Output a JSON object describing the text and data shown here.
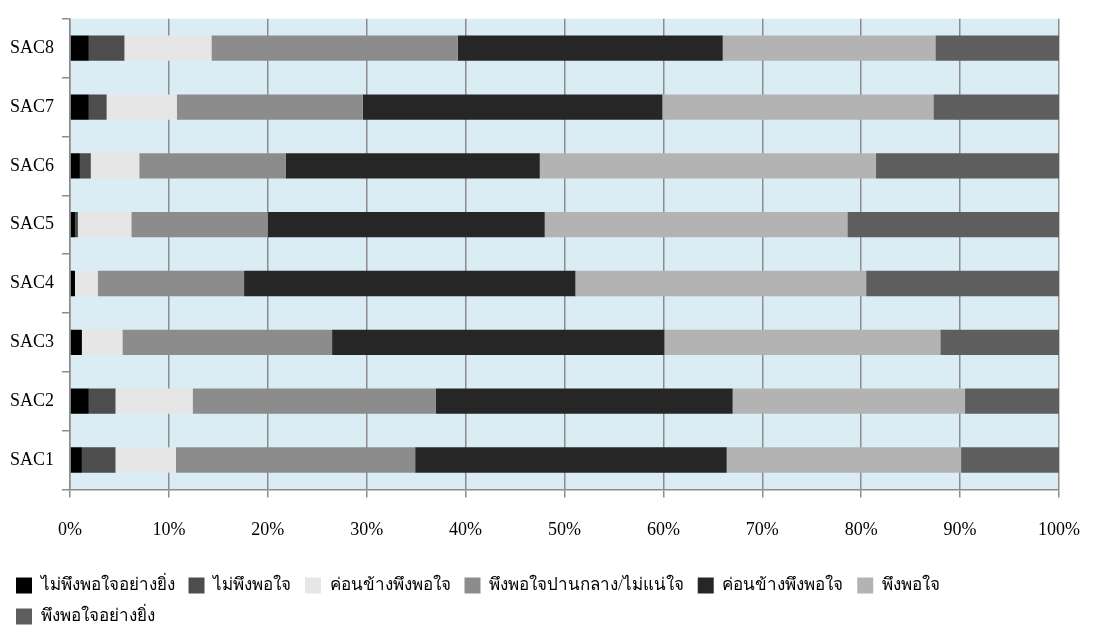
{
  "chart_data": {
    "type": "bar",
    "orientation": "horizontal",
    "stacked": true,
    "categories": [
      "SAC8",
      "SAC7",
      "SAC6",
      "SAC5",
      "SAC4",
      "SAC3",
      "SAC2",
      "SAC1"
    ],
    "series": [
      {
        "name": "ไม่พึงพอใจอย่างยิ่ง",
        "color": "#000000",
        "values": [
          1.9,
          1.9,
          1.0,
          0.5,
          0.5,
          1.2,
          1.9,
          1.2
        ]
      },
      {
        "name": "ไม่พึงพอใจ",
        "color": "#4d4d4d",
        "values": [
          3.6,
          1.8,
          1.1,
          0.3,
          0,
          0,
          2.7,
          3.4
        ]
      },
      {
        "name": "ค่อนข้างพึงพอใจ",
        "color": "#e6e6e6",
        "values": [
          8.8,
          7.1,
          4.9,
          5.4,
          2.3,
          4.1,
          7.8,
          6.1
        ]
      },
      {
        "name": "พึงพอใจปานกลาง/ไม่แน่ใจ",
        "color": "#8c8c8c",
        "values": [
          24.9,
          18.8,
          14.8,
          13.8,
          14.8,
          21.2,
          24.6,
          24.2
        ]
      },
      {
        "name": "ค่อนข้างพึงพอใจ",
        "color": "#262626",
        "values": [
          26.8,
          30.3,
          25.7,
          28.0,
          33.5,
          33.6,
          30.0,
          31.5
        ]
      },
      {
        "name": "พึงพอใจ",
        "color": "#b3b3b3",
        "values": [
          21.5,
          27.4,
          34.0,
          30.6,
          29.4,
          27.9,
          23.5,
          23.7
        ]
      },
      {
        "name": "พึงพอใจอย่างยิ่ง",
        "color": "#5e5e5e",
        "values": [
          12.5,
          12.7,
          18.5,
          21.4,
          19.5,
          12.0,
          9.5,
          9.9
        ]
      }
    ],
    "xlim": [
      0,
      100
    ],
    "xticks": [
      {
        "value": 0,
        "label": "0%"
      },
      {
        "value": 10,
        "label": "10%"
      },
      {
        "value": 20,
        "label": "20%"
      },
      {
        "value": 30,
        "label": "30%"
      },
      {
        "value": 40,
        "label": "40%"
      },
      {
        "value": 50,
        "label": "50%"
      },
      {
        "value": 60,
        "label": "60%"
      },
      {
        "value": 70,
        "label": "70%"
      },
      {
        "value": 80,
        "label": "80%"
      },
      {
        "value": 90,
        "label": "90%"
      },
      {
        "value": 100,
        "label": "100%"
      }
    ],
    "grid": "x",
    "legend": "bottom"
  }
}
